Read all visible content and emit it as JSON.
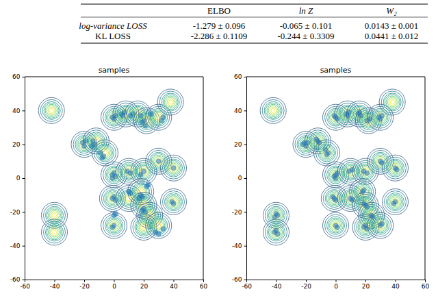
{
  "table": {
    "header": [
      "ELBO",
      "ln Z",
      "W₂"
    ],
    "rows": [
      [
        "log-variance LOSS",
        "-1.279 ± 0.096",
        "-0.065 ± 0.101",
        "0.0143 ± 0.001"
      ],
      [
        "KL LOSS",
        "-2.286 ± 0.1109",
        "-0.244 ± 0.3309",
        "0.0441 ± 0.012"
      ]
    ]
  },
  "chart_data": [
    {
      "type": "scatter",
      "title": "samples",
      "color": "#1f77b4",
      "xlim": [
        -60,
        60
      ],
      "ylim": [
        -60,
        60
      ],
      "xticks": [
        -60,
        -40,
        -20,
        0,
        20,
        40,
        60
      ],
      "yticks": [
        -60,
        -40,
        -20,
        0,
        20,
        40,
        60
      ],
      "x": [
        -21,
        -19,
        -20,
        -14,
        -13,
        -15,
        -9,
        -7,
        -8,
        -1,
        1,
        0,
        5,
        7,
        6,
        11,
        13,
        18,
        25,
        19,
        21,
        20,
        33,
        32,
        -1,
        1,
        0,
        -1,
        9,
        11,
        18,
        20,
        0,
        1,
        -1,
        0,
        1,
        0,
        -1,
        10,
        11,
        18,
        17,
        19,
        20,
        21,
        19,
        22,
        23,
        28,
        30,
        33,
        39,
        40,
        40,
        30
      ],
      "values": [
        21,
        22,
        19,
        22,
        20,
        19,
        15,
        13,
        12,
        36,
        37,
        35,
        38,
        39,
        37,
        37,
        38,
        37,
        38,
        33,
        31,
        34,
        36,
        34,
        2,
        1,
        3,
        0,
        4,
        3,
        2,
        4,
        -11,
        -13,
        -12,
        -22,
        -21,
        -28,
        -29,
        -8,
        -9,
        -10,
        -12,
        -11,
        -18,
        -20,
        -19,
        -5,
        -4,
        -32,
        -33,
        -30,
        -14,
        -15,
        6,
        10
      ],
      "contour_centers": {
        "x": [
          -42,
          -40,
          -40,
          -20,
          -12,
          -6,
          0,
          8,
          16,
          22,
          30,
          38,
          0,
          10,
          20,
          30,
          40,
          -1,
          10,
          18,
          20,
          24,
          20,
          0,
          30,
          40
        ],
        "y": [
          40,
          -22,
          -32,
          20,
          22,
          15,
          36,
          38,
          38,
          34,
          36,
          45,
          2,
          4,
          4,
          10,
          6,
          -12,
          -12,
          -8,
          -16,
          -22,
          -29,
          -28,
          -28,
          -14
        ]
      }
    },
    {
      "type": "scatter",
      "title": "samples",
      "color": "#1f77b4",
      "xlim": [
        -60,
        60
      ],
      "ylim": [
        -60,
        60
      ],
      "xticks": [
        -60,
        -40,
        -20,
        0,
        20,
        40,
        60
      ],
      "yticks": [
        -60,
        -40,
        -20,
        0,
        20,
        40,
        60
      ],
      "x": [
        -40,
        -41,
        -39,
        -40,
        -39,
        -41,
        -21,
        -20,
        -19,
        -22,
        -12,
        -11,
        -13,
        -7,
        -5,
        -6,
        0,
        -1,
        1,
        7,
        9,
        8,
        15,
        17,
        16,
        21,
        23,
        29,
        31,
        30,
        0,
        -1,
        1,
        0,
        9,
        11,
        19,
        21,
        30,
        31,
        40,
        41,
        -1,
        0,
        -2,
        10,
        11,
        18,
        19,
        20,
        21,
        19,
        24,
        25,
        20,
        21,
        19,
        0,
        1,
        30,
        31,
        40,
        39
      ],
      "values": [
        -21,
        -23,
        -22,
        -31,
        -33,
        -32,
        21,
        19,
        21,
        20,
        22,
        21,
        23,
        17,
        15,
        14,
        36,
        37,
        35,
        38,
        39,
        37,
        38,
        37,
        39,
        34,
        35,
        36,
        37,
        35,
        2,
        1,
        3,
        0,
        4,
        5,
        4,
        3,
        10,
        9,
        6,
        5,
        -12,
        -13,
        -11,
        -12,
        -13,
        -8,
        -7,
        -16,
        -17,
        -15,
        -22,
        -23,
        -28,
        -30,
        -29,
        -28,
        -29,
        -28,
        -27,
        -14,
        -15
      ],
      "contour_centers": {
        "x": [
          -42,
          -40,
          -40,
          -20,
          -12,
          -6,
          0,
          8,
          16,
          22,
          30,
          38,
          0,
          10,
          20,
          30,
          40,
          -1,
          10,
          18,
          20,
          24,
          20,
          0,
          30,
          40
        ],
        "y": [
          40,
          -22,
          -32,
          20,
          22,
          15,
          36,
          38,
          38,
          34,
          36,
          45,
          2,
          4,
          4,
          10,
          6,
          -12,
          -12,
          -8,
          -16,
          -22,
          -29,
          -28,
          -28,
          -14
        ]
      }
    }
  ]
}
